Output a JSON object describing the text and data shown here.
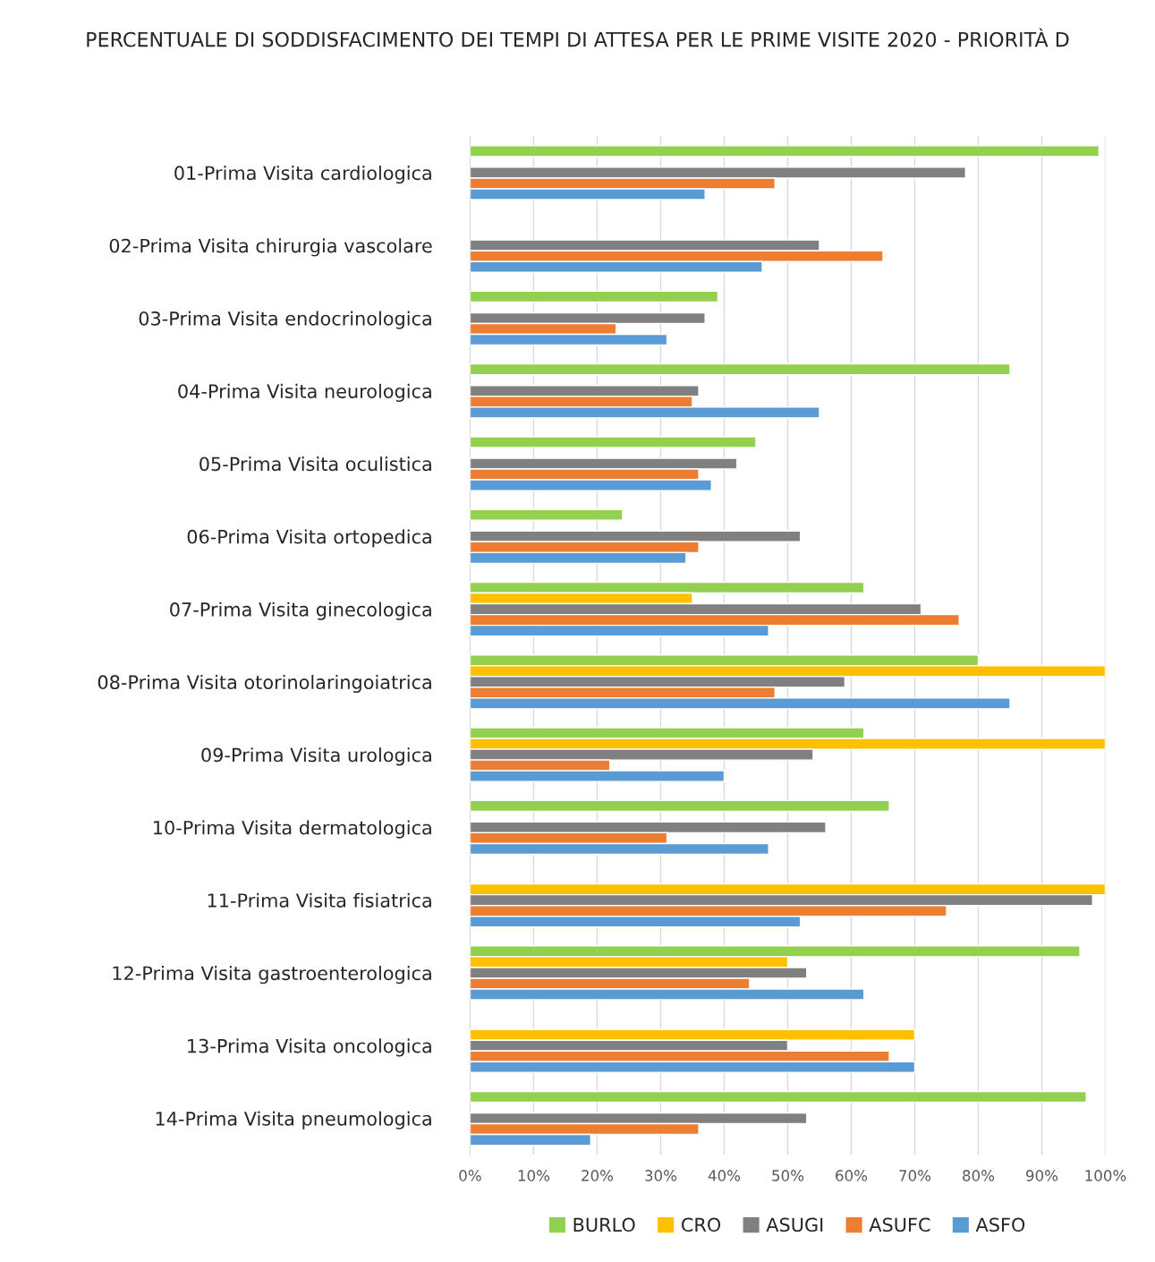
{
  "chart_data": {
    "type": "bar",
    "orientation": "horizontal",
    "title": "PERCENTUALE DI SODDISFACIMENTO DEI TEMPI DI ATTESA PER LE PRIME VISITE 2020 - PRIORITÀ D",
    "categories": [
      "01-Prima Visita cardiologica",
      "02-Prima Visita chirurgia vascolare",
      "03-Prima Visita endocrinologica",
      "04-Prima Visita neurologica",
      "05-Prima Visita oculistica",
      "06-Prima Visita ortopedica",
      "07-Prima Visita ginecologica",
      "08-Prima Visita otorinolaringoiatrica",
      "09-Prima Visita urologica",
      "10-Prima Visita dermatologica",
      "11-Prima Visita fisiatrica",
      "12-Prima Visita gastroenterologica",
      "13-Prima Visita oncologica",
      "14-Prima Visita pneumologica"
    ],
    "series": [
      {
        "name": "BURLO",
        "color": "#92d050",
        "values": [
          99,
          null,
          39,
          85,
          45,
          24,
          62,
          80,
          62,
          66,
          null,
          96,
          null,
          97
        ]
      },
      {
        "name": "CRO",
        "color": "#ffc000",
        "values": [
          null,
          null,
          null,
          null,
          null,
          null,
          35,
          100,
          100,
          null,
          100,
          50,
          70,
          null
        ]
      },
      {
        "name": "ASUGI",
        "color": "#808080",
        "values": [
          78,
          55,
          37,
          36,
          42,
          52,
          71,
          59,
          54,
          56,
          98,
          53,
          50,
          53
        ]
      },
      {
        "name": "ASUFC",
        "color": "#ed7d31",
        "values": [
          48,
          65,
          23,
          35,
          36,
          36,
          77,
          48,
          22,
          31,
          75,
          44,
          66,
          36
        ]
      },
      {
        "name": "ASFO",
        "color": "#5b9bd5",
        "values": [
          37,
          46,
          31,
          55,
          38,
          34,
          47,
          85,
          40,
          47,
          52,
          62,
          70,
          19
        ]
      }
    ],
    "xlim": [
      0,
      100
    ],
    "xticks": [
      {
        "value": 0,
        "label": "0%"
      },
      {
        "value": 10,
        "label": "10%"
      },
      {
        "value": 20,
        "label": "20%"
      },
      {
        "value": 30,
        "label": "30%"
      },
      {
        "value": 40,
        "label": "40%"
      },
      {
        "value": 50,
        "label": "50%"
      },
      {
        "value": 60,
        "label": "60%"
      },
      {
        "value": 70,
        "label": "70%"
      },
      {
        "value": 80,
        "label": "80%"
      },
      {
        "value": 90,
        "label": "90%"
      },
      {
        "value": 100,
        "label": "100%"
      }
    ],
    "grid": "x",
    "legend": "bottom"
  }
}
